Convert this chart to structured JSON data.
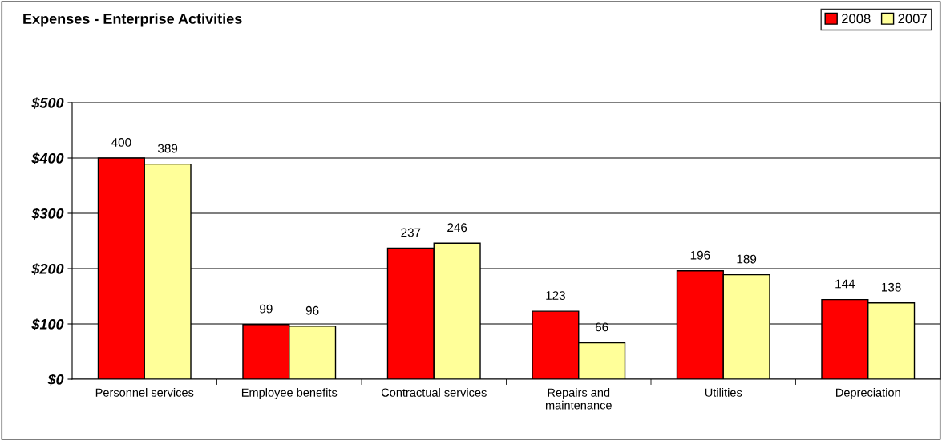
{
  "chart_data": {
    "type": "bar",
    "title": "Expenses - Enterprise Activities",
    "categories": [
      "Personnel services",
      "Employee benefits",
      "Contractual services",
      "Repairs and\nmaintenance",
      "Utilities",
      "Depreciation"
    ],
    "series": [
      {
        "name": "2008",
        "color": "#ff0000",
        "values": [
          400,
          99,
          237,
          123,
          196,
          144
        ]
      },
      {
        "name": "2007",
        "color": "#ffff99",
        "values": [
          389,
          96,
          246,
          66,
          189,
          138
        ]
      }
    ],
    "ylim": [
      0,
      500
    ],
    "yticks": [
      {
        "value": 0,
        "label": "$0"
      },
      {
        "value": 100,
        "label": "$100"
      },
      {
        "value": 200,
        "label": "$200"
      },
      {
        "value": 300,
        "label": "$300"
      },
      {
        "value": 400,
        "label": "$400"
      },
      {
        "value": 500,
        "label": "$500"
      }
    ],
    "grid": "y",
    "legend": "top right",
    "data_labels": true
  }
}
